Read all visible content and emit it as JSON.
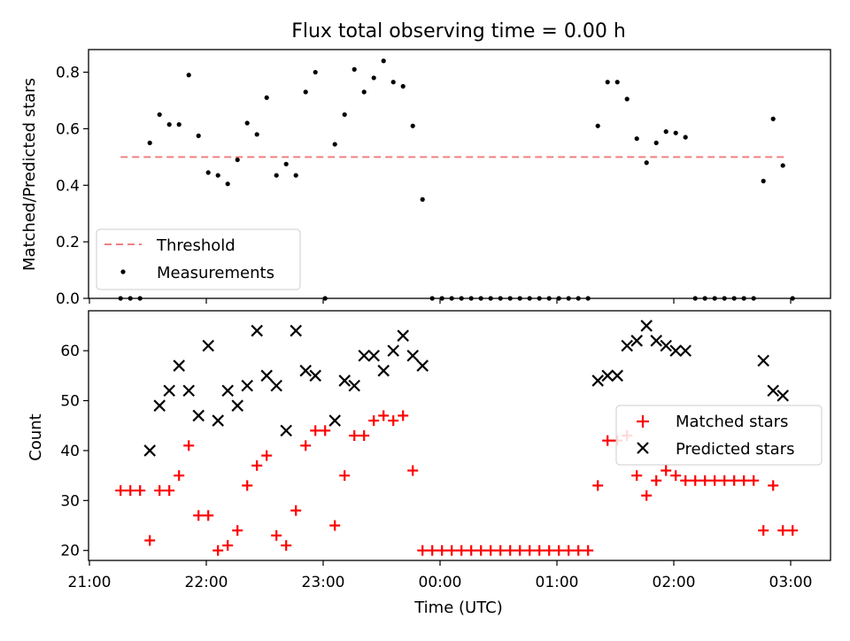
{
  "chart_data": [
    {
      "type": "scatter",
      "title": "Flux total observing time = 0.00 h",
      "xlabel": "",
      "ylabel": "Matched/Predicted stars",
      "ylim": [
        0,
        0.88
      ],
      "yticks": [
        "0.0",
        "0.2",
        "0.4",
        "0.6",
        "0.8"
      ],
      "legend_position": "lower-left",
      "threshold": {
        "name": "Threshold",
        "value": 0.5,
        "x_start": "21:16",
        "x_end": "02:58",
        "color": "#f08080"
      },
      "series": [
        {
          "name": "Measurements",
          "color": "#000000",
          "points": [
            [
              "21:16",
              0.0
            ],
            [
              "21:21",
              0.0
            ],
            [
              "21:26",
              0.0
            ],
            [
              "21:31",
              0.55
            ],
            [
              "21:36",
              0.65
            ],
            [
              "21:41",
              0.615
            ],
            [
              "21:46",
              0.615
            ],
            [
              "21:51",
              0.79
            ],
            [
              "21:56",
              0.575
            ],
            [
              "22:01",
              0.445
            ],
            [
              "22:06",
              0.435
            ],
            [
              "22:11",
              0.405
            ],
            [
              "22:16",
              0.49
            ],
            [
              "22:21",
              0.62
            ],
            [
              "22:26",
              0.58
            ],
            [
              "22:31",
              0.71
            ],
            [
              "22:36",
              0.435
            ],
            [
              "22:41",
              0.475
            ],
            [
              "22:46",
              0.435
            ],
            [
              "22:51",
              0.73
            ],
            [
              "22:56",
              0.8
            ],
            [
              "23:01",
              0.0
            ],
            [
              "23:06",
              0.545
            ],
            [
              "23:11",
              0.65
            ],
            [
              "23:16",
              0.81
            ],
            [
              "23:21",
              0.73
            ],
            [
              "23:26",
              0.78
            ],
            [
              "23:31",
              0.84
            ],
            [
              "23:36",
              0.765
            ],
            [
              "23:41",
              0.75
            ],
            [
              "23:46",
              0.61
            ],
            [
              "23:51",
              0.35
            ],
            [
              "23:56",
              0.0
            ],
            [
              "00:01",
              0.0
            ],
            [
              "00:06",
              0.0
            ],
            [
              "00:11",
              0.0
            ],
            [
              "00:16",
              0.0
            ],
            [
              "00:21",
              0.0
            ],
            [
              "00:26",
              0.0
            ],
            [
              "00:31",
              0.0
            ],
            [
              "00:36",
              0.0
            ],
            [
              "00:41",
              0.0
            ],
            [
              "00:46",
              0.0
            ],
            [
              "00:51",
              0.0
            ],
            [
              "00:56",
              0.0
            ],
            [
              "01:01",
              0.0
            ],
            [
              "01:06",
              0.0
            ],
            [
              "01:11",
              0.0
            ],
            [
              "01:16",
              0.0
            ],
            [
              "01:21",
              0.61
            ],
            [
              "01:26",
              0.765
            ],
            [
              "01:31",
              0.765
            ],
            [
              "01:36",
              0.705
            ],
            [
              "01:41",
              0.565
            ],
            [
              "01:46",
              0.48
            ],
            [
              "01:51",
              0.55
            ],
            [
              "01:56",
              0.59
            ],
            [
              "02:01",
              0.585
            ],
            [
              "02:06",
              0.57
            ],
            [
              "02:11",
              0.0
            ],
            [
              "02:16",
              0.0
            ],
            [
              "02:21",
              0.0
            ],
            [
              "02:26",
              0.0
            ],
            [
              "02:31",
              0.0
            ],
            [
              "02:36",
              0.0
            ],
            [
              "02:41",
              0.0
            ],
            [
              "02:46",
              0.415
            ],
            [
              "02:51",
              0.635
            ],
            [
              "02:56",
              0.47
            ],
            [
              "03:01",
              0.0
            ]
          ]
        }
      ]
    },
    {
      "type": "scatter",
      "title": "",
      "xlabel": "Time (UTC)",
      "ylabel": "Count",
      "ylim": [
        18,
        68
      ],
      "yticks": [
        "20",
        "30",
        "40",
        "50",
        "60"
      ],
      "xticks": [
        "21:00",
        "22:00",
        "23:00",
        "00:00",
        "01:00",
        "02:00",
        "03:00"
      ],
      "legend_position": "center-right",
      "series": [
        {
          "name": "Matched stars",
          "color": "#ff0000",
          "marker": "plus",
          "points": [
            [
              "21:16",
              32
            ],
            [
              "21:21",
              32
            ],
            [
              "21:26",
              32
            ],
            [
              "21:31",
              22
            ],
            [
              "21:36",
              32
            ],
            [
              "21:41",
              32
            ],
            [
              "21:46",
              35
            ],
            [
              "21:51",
              41
            ],
            [
              "21:56",
              27
            ],
            [
              "22:01",
              27
            ],
            [
              "22:06",
              20
            ],
            [
              "22:11",
              21
            ],
            [
              "22:16",
              24
            ],
            [
              "22:21",
              33
            ],
            [
              "22:26",
              37
            ],
            [
              "22:31",
              39
            ],
            [
              "22:36",
              23
            ],
            [
              "22:41",
              21
            ],
            [
              "22:46",
              28
            ],
            [
              "22:51",
              41
            ],
            [
              "22:56",
              44
            ],
            [
              "23:01",
              44
            ],
            [
              "23:06",
              25
            ],
            [
              "23:11",
              35
            ],
            [
              "23:16",
              43
            ],
            [
              "23:21",
              43
            ],
            [
              "23:26",
              46
            ],
            [
              "23:31",
              47
            ],
            [
              "23:36",
              46
            ],
            [
              "23:41",
              47
            ],
            [
              "23:46",
              36
            ],
            [
              "23:51",
              20
            ],
            [
              "23:56",
              20
            ],
            [
              "00:01",
              20
            ],
            [
              "00:06",
              20
            ],
            [
              "00:11",
              20
            ],
            [
              "00:16",
              20
            ],
            [
              "00:21",
              20
            ],
            [
              "00:26",
              20
            ],
            [
              "00:31",
              20
            ],
            [
              "00:36",
              20
            ],
            [
              "00:41",
              20
            ],
            [
              "00:46",
              20
            ],
            [
              "00:51",
              20
            ],
            [
              "00:56",
              20
            ],
            [
              "01:01",
              20
            ],
            [
              "01:06",
              20
            ],
            [
              "01:11",
              20
            ],
            [
              "01:16",
              20
            ],
            [
              "01:21",
              33
            ],
            [
              "01:26",
              42
            ],
            [
              "01:31",
              42
            ],
            [
              "01:36",
              43
            ],
            [
              "01:41",
              35
            ],
            [
              "01:46",
              31
            ],
            [
              "01:51",
              34
            ],
            [
              "01:56",
              36
            ],
            [
              "02:01",
              35
            ],
            [
              "02:06",
              34
            ],
            [
              "02:11",
              34
            ],
            [
              "02:16",
              34
            ],
            [
              "02:21",
              34
            ],
            [
              "02:26",
              34
            ],
            [
              "02:31",
              34
            ],
            [
              "02:36",
              34
            ],
            [
              "02:41",
              34
            ],
            [
              "02:46",
              24
            ],
            [
              "02:51",
              33
            ],
            [
              "02:56",
              24
            ],
            [
              "03:01",
              24
            ]
          ]
        },
        {
          "name": "Predicted stars",
          "color": "#000000",
          "marker": "x",
          "points": [
            [
              "21:31",
              40
            ],
            [
              "21:36",
              49
            ],
            [
              "21:41",
              52
            ],
            [
              "21:46",
              57
            ],
            [
              "21:51",
              52
            ],
            [
              "21:56",
              47
            ],
            [
              "22:01",
              61
            ],
            [
              "22:06",
              46
            ],
            [
              "22:11",
              52
            ],
            [
              "22:16",
              49
            ],
            [
              "22:21",
              53
            ],
            [
              "22:26",
              64
            ],
            [
              "22:31",
              55
            ],
            [
              "22:36",
              53
            ],
            [
              "22:41",
              44
            ],
            [
              "22:46",
              64
            ],
            [
              "22:51",
              56
            ],
            [
              "22:56",
              55
            ],
            [
              "23:06",
              46
            ],
            [
              "23:11",
              54
            ],
            [
              "23:16",
              53
            ],
            [
              "23:21",
              59
            ],
            [
              "23:26",
              59
            ],
            [
              "23:31",
              56
            ],
            [
              "23:36",
              60
            ],
            [
              "23:41",
              63
            ],
            [
              "23:46",
              59
            ],
            [
              "23:51",
              57
            ],
            [
              "01:21",
              54
            ],
            [
              "01:26",
              55
            ],
            [
              "01:31",
              55
            ],
            [
              "01:36",
              61
            ],
            [
              "01:41",
              62
            ],
            [
              "01:46",
              65
            ],
            [
              "01:51",
              62
            ],
            [
              "01:56",
              61
            ],
            [
              "02:01",
              60
            ],
            [
              "02:06",
              60
            ],
            [
              "02:46",
              58
            ],
            [
              "02:51",
              52
            ],
            [
              "02:56",
              51
            ]
          ]
        }
      ]
    }
  ]
}
